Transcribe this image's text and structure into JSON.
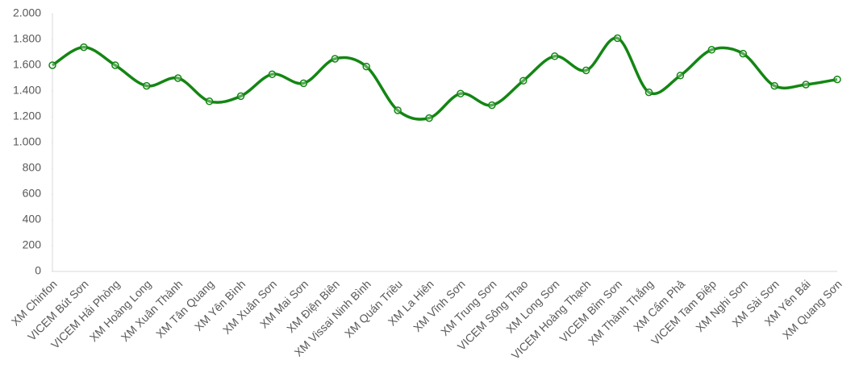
{
  "chart_data": {
    "type": "line",
    "smooth": true,
    "markers": true,
    "categories": [
      "XM Chinfon",
      "VICEM Bút Sơn",
      "VICEM Hải Phòng",
      "XM Hoàng Long",
      "XM Xuân Thành",
      "XM Tân Quang",
      "XM Yên Bình",
      "XM Xuân Sơn",
      "XM Mai Sơn",
      "XM Điện Biên",
      "XM Vissai Ninh Bình",
      "XM Quán Triều",
      "XM La Hiên",
      "XM Vĩnh Sơn",
      "XM Trung Sơn",
      "VICEM Sông Thao",
      "XM Long Sơn",
      "VICEM Hoàng Thạch",
      "VICEM Bỉm Sơn",
      "XM Thành Thắng",
      "XM Cẩm Phả",
      "VICEM Tam Điệp",
      "XM Nghi Sơn",
      "XM Sài Sơn",
      "XM Yên Bái",
      "XM Quang Sơn"
    ],
    "values": [
      1600,
      1740,
      1600,
      1440,
      1500,
      1320,
      1360,
      1530,
      1460,
      1650,
      1590,
      1250,
      1190,
      1380,
      1290,
      1480,
      1670,
      1560,
      1810,
      1390,
      1520,
      1720,
      1690,
      1440,
      1450,
      1490
    ],
    "color": "#138613",
    "ylim": [
      0,
      2000
    ],
    "yticks": [
      0,
      200,
      400,
      600,
      800,
      {
        "value": 1000,
        "label": "1.000"
      },
      {
        "value": 1200,
        "label": "1.200"
      },
      {
        "value": 1400,
        "label": "1.400"
      },
      {
        "value": 1600,
        "label": "1.600"
      },
      {
        "value": 1800,
        "label": "1.800"
      },
      {
        "value": 2000,
        "label": "2.000"
      }
    ]
  }
}
